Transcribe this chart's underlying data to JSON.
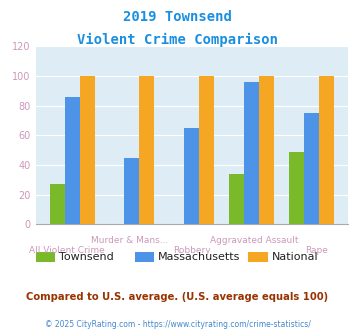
{
  "title_line1": "2019 Townsend",
  "title_line2": "Violent Crime Comparison",
  "categories": [
    "All Violent Crime",
    "Murder & Mans...",
    "Robbery",
    "Aggravated Assault",
    "Rape"
  ],
  "townsend": [
    27,
    0,
    0,
    34,
    49
  ],
  "massachusetts": [
    86,
    45,
    65,
    96,
    75
  ],
  "national": [
    100,
    100,
    100,
    100,
    100
  ],
  "townsend_color": "#7aba2a",
  "massachusetts_color": "#4d94e8",
  "national_color": "#f5a623",
  "bg_color": "#deedf5",
  "ylim": [
    0,
    120
  ],
  "yticks": [
    0,
    20,
    40,
    60,
    80,
    100,
    120
  ],
  "subtitle_text": "Compared to U.S. average. (U.S. average equals 100)",
  "footer_text": "© 2025 CityRating.com - https://www.cityrating.com/crime-statistics/",
  "title_color": "#1a8fe0",
  "subtitle_color": "#993300",
  "footer_color": "#4488cc",
  "tick_color": "#cc99bb",
  "legend_text_color": "#222222",
  "legend_labels": [
    "Townsend",
    "Massachusetts",
    "National"
  ],
  "upper_labels": {
    "1": "Murder & Mans...",
    "3": "Aggravated Assault"
  },
  "lower_labels": {
    "0": "All Violent Crime",
    "2": "Robbery",
    "4": "Rape"
  }
}
